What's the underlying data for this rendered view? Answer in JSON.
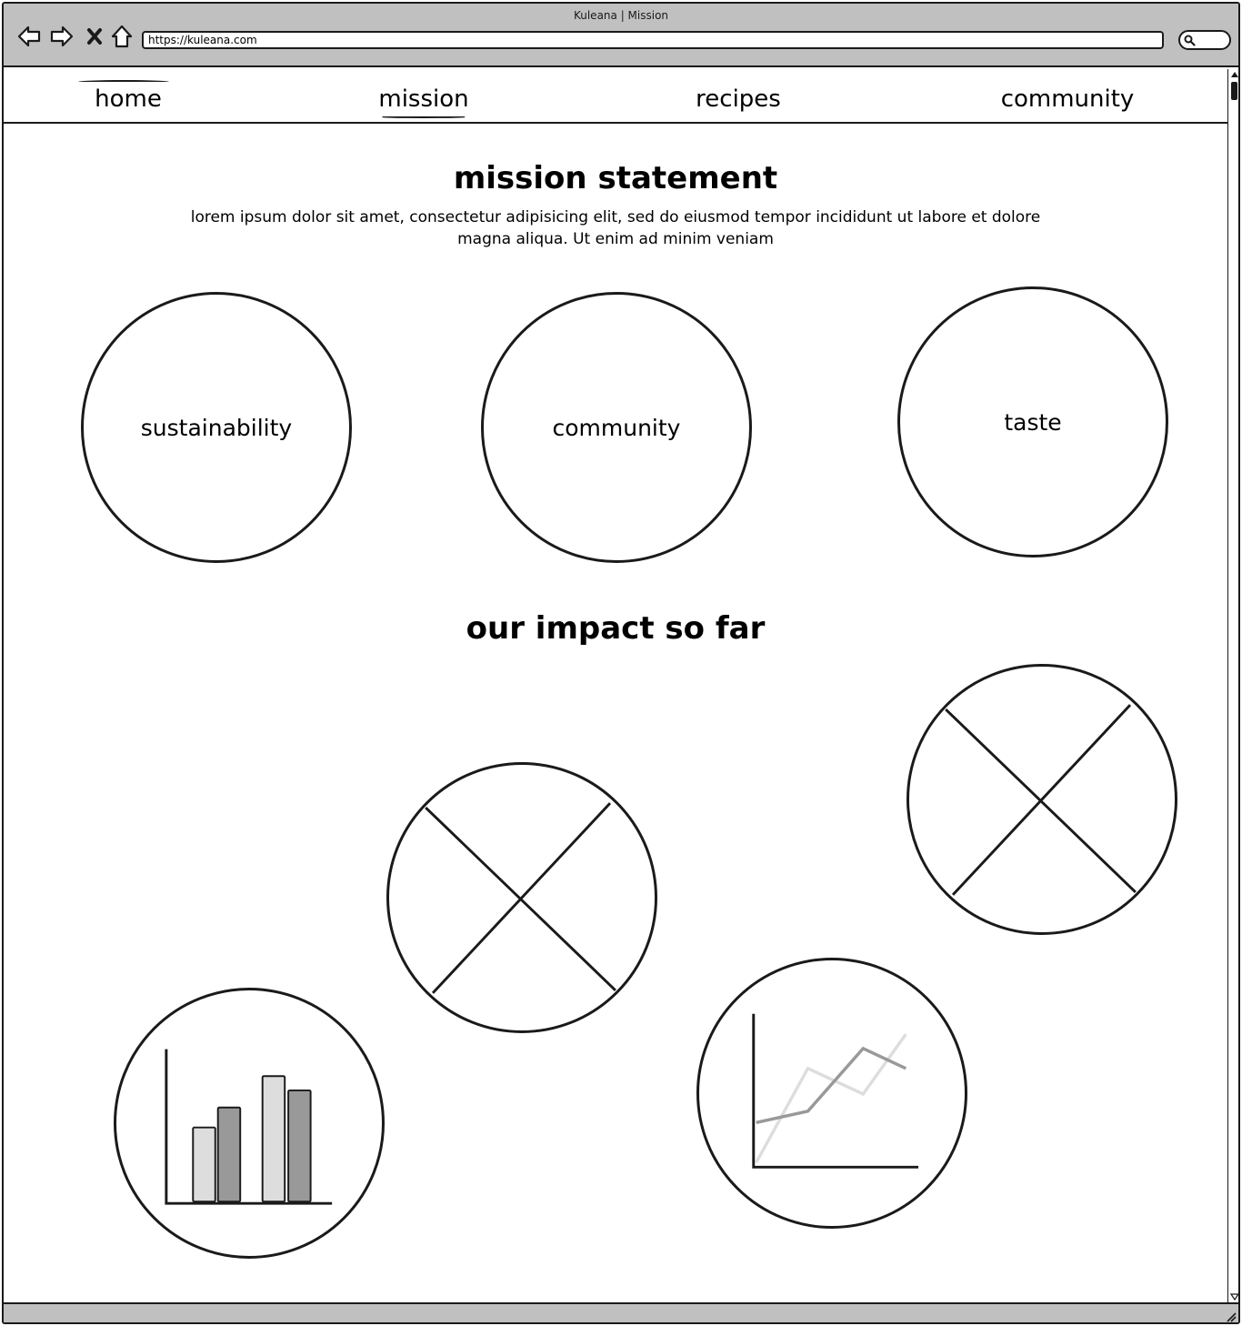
{
  "browser": {
    "title": "Kuleana | Mission",
    "url": "https://kuleana.com"
  },
  "nav": {
    "items": [
      {
        "label": "home"
      },
      {
        "label": "mission"
      },
      {
        "label": "recipes"
      },
      {
        "label": "community"
      }
    ],
    "active": "mission"
  },
  "mission": {
    "title": "mission statement",
    "text": "lorem ipsum dolor sit amet, consectetur adipisicing elit, sed do eiusmod tempor incididunt ut labore et dolore magna aliqua. Ut enim ad minim veniam"
  },
  "values": [
    {
      "label": "sustainability"
    },
    {
      "label": "community"
    },
    {
      "label": "taste"
    }
  ],
  "impact": {
    "title": "our impact so far",
    "placeholders": [
      "image-placeholder",
      "image-placeholder"
    ],
    "bar_icon": {
      "values": [
        0.52,
        0.66,
        0.88,
        0.78
      ],
      "colors": [
        "#dddddd",
        "#999999",
        "#dddddd",
        "#999999"
      ]
    },
    "line_icon": {
      "series": [
        {
          "name": "",
          "color": "#999999",
          "values": [
            0.3,
            0.38,
            0.82,
            0.68
          ]
        },
        {
          "name": "",
          "color": "#dddddd",
          "values": [
            0.02,
            0.68,
            0.5,
            0.92
          ]
        }
      ]
    }
  }
}
